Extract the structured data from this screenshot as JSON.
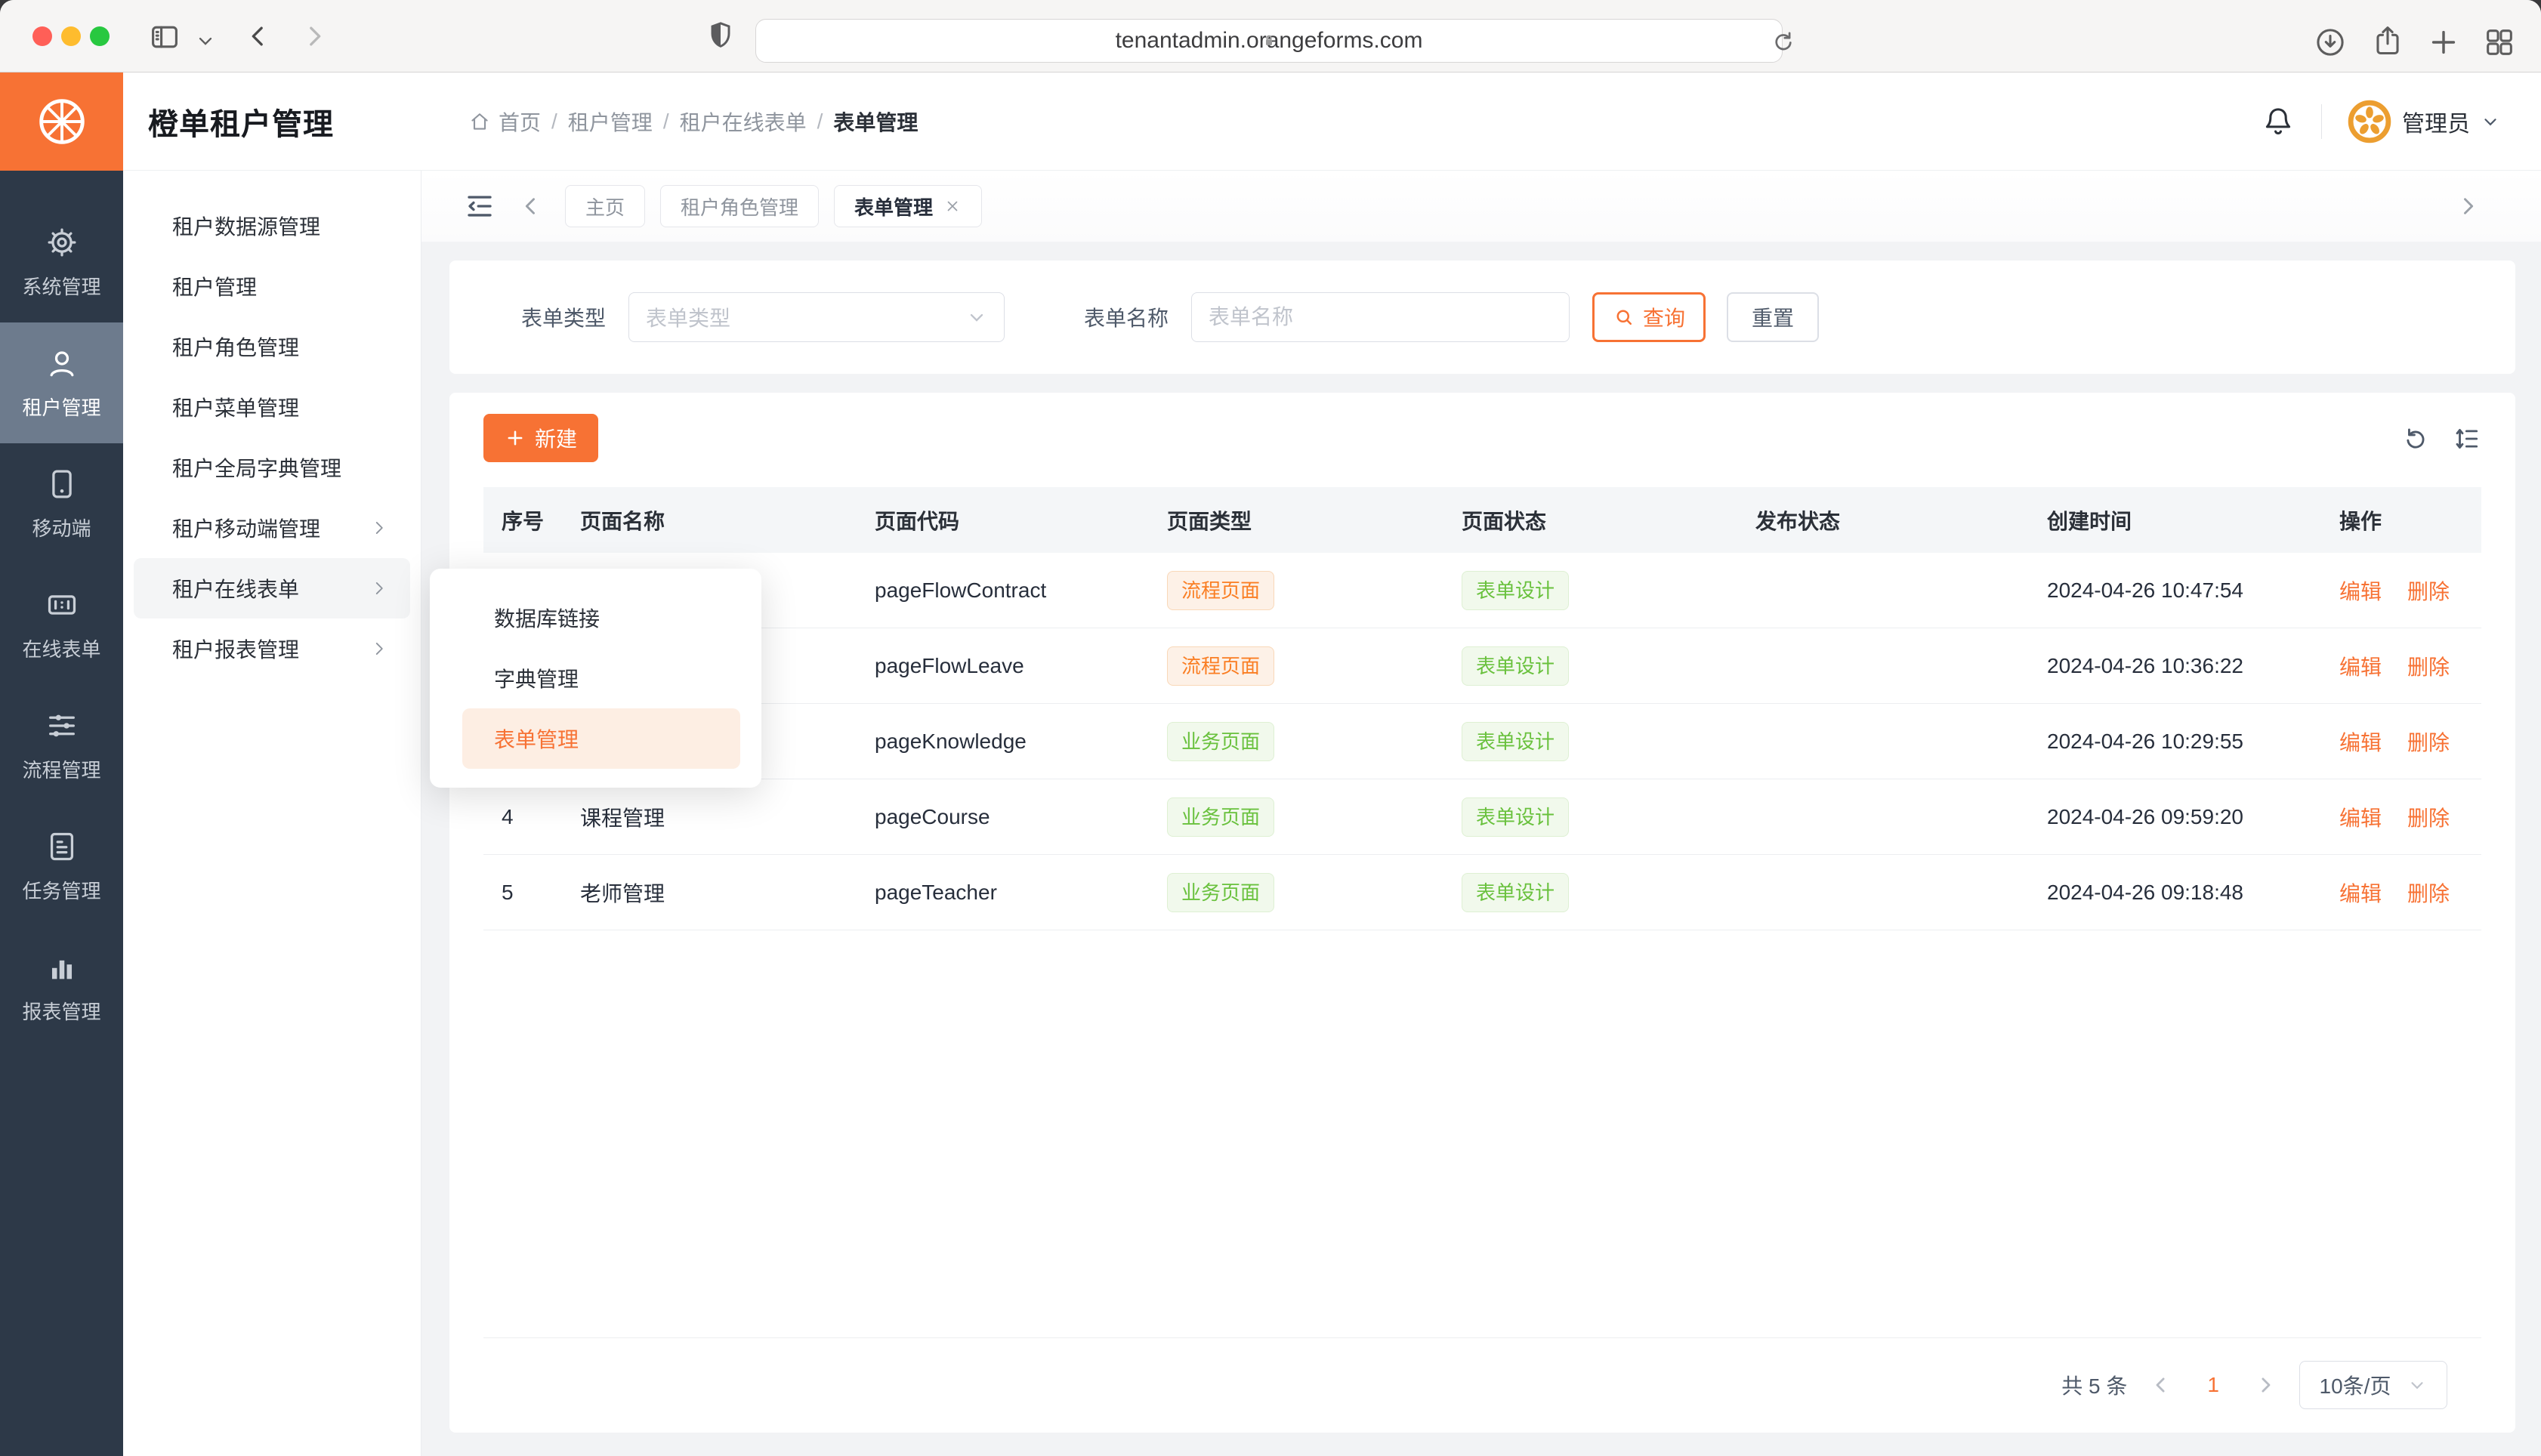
{
  "browser": {
    "url": "tenantadmin.orangeforms.com"
  },
  "header": {
    "title": "橙单租户管理",
    "breadcrumb": [
      "首页",
      "租户管理",
      "租户在线表单",
      "表单管理"
    ],
    "user_label": "管理员"
  },
  "rail": {
    "items": [
      {
        "label": "系统管理",
        "icon": "gear",
        "active": false
      },
      {
        "label": "租户管理",
        "icon": "user",
        "active": true
      },
      {
        "label": "移动端",
        "icon": "mobile",
        "active": false
      },
      {
        "label": "在线表单",
        "icon": "form",
        "active": false
      },
      {
        "label": "流程管理",
        "icon": "sliders",
        "active": false
      },
      {
        "label": "任务管理",
        "icon": "task",
        "active": false
      },
      {
        "label": "报表管理",
        "icon": "chart",
        "active": false
      }
    ]
  },
  "submenu": {
    "items": [
      {
        "label": "租户数据源管理",
        "children": false,
        "active": false
      },
      {
        "label": "租户管理",
        "children": false,
        "active": false
      },
      {
        "label": "租户角色管理",
        "children": false,
        "active": false
      },
      {
        "label": "租户菜单管理",
        "children": false,
        "active": false
      },
      {
        "label": "租户全局字典管理",
        "children": false,
        "active": false
      },
      {
        "label": "租户移动端管理",
        "children": true,
        "active": false
      },
      {
        "label": "租户在线表单",
        "children": true,
        "active": true
      },
      {
        "label": "租户报表管理",
        "children": true,
        "active": false
      }
    ]
  },
  "flyout": {
    "items": [
      {
        "label": "数据库链接",
        "active": false
      },
      {
        "label": "字典管理",
        "active": false
      },
      {
        "label": "表单管理",
        "active": true
      }
    ]
  },
  "tabs": {
    "items": [
      {
        "label": "主页",
        "active": false,
        "closable": false
      },
      {
        "label": "租户角色管理",
        "active": false,
        "closable": false
      },
      {
        "label": "表单管理",
        "active": true,
        "closable": true
      }
    ]
  },
  "filters": {
    "type_label": "表单类型",
    "type_placeholder": "表单类型",
    "name_label": "表单名称",
    "name_placeholder": "表单名称",
    "search_label": "查询",
    "reset_label": "重置"
  },
  "toolbar": {
    "new_label": "新建"
  },
  "table": {
    "columns": [
      "序号",
      "页面名称",
      "页面代码",
      "页面类型",
      "页面状态",
      "发布状态",
      "创建时间",
      "操作"
    ],
    "edit_label": "编辑",
    "delete_label": "删除",
    "rows": [
      {
        "serial": "",
        "name": "",
        "code": "pageFlowContract",
        "type": "流程页面",
        "type_color": "orange",
        "state": "表单设计",
        "published": true,
        "created": "2024-04-26 10:47:54"
      },
      {
        "serial": "",
        "name": "",
        "code": "pageFlowLeave",
        "type": "流程页面",
        "type_color": "orange",
        "state": "表单设计",
        "published": true,
        "created": "2024-04-26 10:36:22"
      },
      {
        "serial": "",
        "name": "",
        "code": "pageKnowledge",
        "type": "业务页面",
        "type_color": "green",
        "state": "表单设计",
        "published": true,
        "created": "2024-04-26 10:29:55"
      },
      {
        "serial": "4",
        "name": "课程管理",
        "code": "pageCourse",
        "type": "业务页面",
        "type_color": "green",
        "state": "表单设计",
        "published": true,
        "created": "2024-04-26 09:59:20"
      },
      {
        "serial": "5",
        "name": "老师管理",
        "code": "pageTeacher",
        "type": "业务页面",
        "type_color": "green",
        "state": "表单设计",
        "published": true,
        "created": "2024-04-26 09:18:48"
      }
    ]
  },
  "pagination": {
    "total_label": "共 5 条",
    "current_page": "1",
    "page_size_label": "10条/页"
  },
  "colors": {
    "accent": "#F77234",
    "rail_bg": "#2D3948",
    "rail_active_bg": "#6D7B8D",
    "tag_orange": "#FA7E23",
    "tag_green": "#69C13D",
    "content_bg": "#F2F3F5"
  }
}
